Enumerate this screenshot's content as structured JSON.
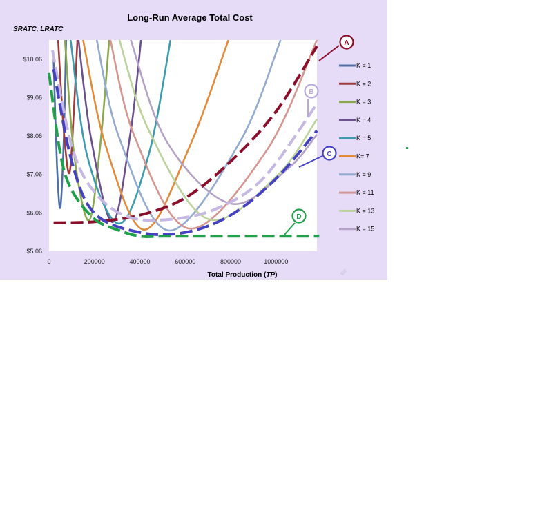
{
  "chart_data": {
    "type": "line",
    "title": "Long-Run Average Total Cost",
    "ylabel": "SRATC, LRATC",
    "xlabel_main": "Total Production (",
    "xlabel_italic": "TP",
    "xlabel_close": ")",
    "xlim": [
      0,
      1180000
    ],
    "ylim": [
      5.06,
      10.56
    ],
    "x_ticks": [
      0,
      200000,
      400000,
      600000,
      800000,
      1000000
    ],
    "x_tick_labels": [
      "0",
      "200000",
      "400000",
      "600000",
      "800000",
      "1000000"
    ],
    "y_ticks": [
      5.06,
      6.06,
      7.06,
      8.06,
      9.06,
      10.06
    ],
    "y_tick_labels": [
      "$5.06",
      "$6.06",
      "$7.06",
      "$8.06",
      "$9.06",
      "$10.06"
    ],
    "series": [
      {
        "name": "K = 1",
        "color": "#4f6fa6",
        "x": [
          20000,
          35000,
          50000,
          65000,
          75000
        ],
        "y": [
          10.06,
          7.3,
          6.2,
          8.0,
          10.56
        ]
      },
      {
        "name": "K = 2",
        "color": "#a13a3a",
        "x": [
          40000,
          65000,
          90000,
          110000,
          125000
        ],
        "y": [
          10.56,
          8.2,
          7.1,
          8.8,
          10.56
        ]
      },
      {
        "name": "K = 3",
        "color": "#8aa84e",
        "x": [
          70000,
          110000,
          175000,
          225000,
          265000
        ],
        "y": [
          10.56,
          7.6,
          5.86,
          7.8,
          10.56
        ]
      },
      {
        "name": "K = 4",
        "color": "#6b4f8e",
        "x": [
          130000,
          185000,
          280000,
          360000,
          405000
        ],
        "y": [
          10.56,
          8.0,
          5.82,
          8.2,
          10.56
        ]
      },
      {
        "name": "K = 5",
        "color": "#3e9bad",
        "x": [
          95000,
          170000,
          310000,
          440000,
          535000
        ],
        "y": [
          10.56,
          7.5,
          5.78,
          7.6,
          10.56
        ]
      },
      {
        "name": "K= 7",
        "color": "#e28a3a",
        "x": [
          150000,
          250000,
          420000,
          620000,
          790000
        ],
        "y": [
          10.56,
          7.8,
          5.62,
          7.8,
          10.56
        ]
      },
      {
        "name": "K = 9",
        "color": "#93aad1",
        "x": [
          210000,
          310000,
          530000,
          840000,
          1020000
        ],
        "y": [
          10.56,
          8.0,
          5.6,
          7.9,
          10.56
        ]
      },
      {
        "name": "K = 11",
        "color": "#d6958f",
        "x": [
          270000,
          380000,
          620000,
          960000,
          1180000
        ],
        "y": [
          10.56,
          8.0,
          5.65,
          7.7,
          10.56
        ]
      },
      {
        "name": "K = 13",
        "color": "#bcd39c",
        "x": [
          310000,
          440000,
          700000,
          1000000,
          1180000
        ],
        "y": [
          10.56,
          8.2,
          5.9,
          7.0,
          8.5
        ]
      },
      {
        "name": "K = 15",
        "color": "#b4a1c6",
        "x": [
          360000,
          520000,
          800000,
          1050000,
          1180000
        ],
        "y": [
          10.56,
          7.9,
          6.3,
          7.2,
          8.1
        ]
      },
      {
        "name": "A",
        "color": "#8b0f2b",
        "dashed": true,
        "x": [
          20000,
          200000,
          400000,
          600000,
          800000,
          1000000,
          1180000
        ],
        "y": [
          5.8,
          5.83,
          6.0,
          6.45,
          7.4,
          8.7,
          10.4
        ]
      },
      {
        "name": "B",
        "color": "#c5b8e3",
        "dashed": true,
        "x": [
          15000,
          100000,
          200000,
          350000,
          550000,
          750000,
          950000,
          1180000
        ],
        "y": [
          10.3,
          7.8,
          6.6,
          5.95,
          5.9,
          6.2,
          7.0,
          8.9
        ]
      },
      {
        "name": "C",
        "color": "#4542c2",
        "dashed": true,
        "x": [
          20000,
          100000,
          200000,
          400000,
          600000,
          800000,
          1000000,
          1180000
        ],
        "y": [
          9.8,
          7.4,
          6.05,
          5.55,
          5.55,
          6.0,
          6.95,
          8.2
        ]
      },
      {
        "name": "D",
        "color": "#1fa24b",
        "dashed": true,
        "x": [
          0,
          50000,
          100000,
          200000,
          300000,
          400000,
          500000,
          700000,
          900000,
          1100000,
          1190000
        ],
        "y": [
          9.7,
          7.6,
          6.65,
          5.9,
          5.62,
          5.45,
          5.45,
          5.45,
          5.45,
          5.45,
          5.45
        ]
      }
    ],
    "legend_position": "right",
    "annotations": [
      {
        "label": "A",
        "color": "#8b0f2b"
      },
      {
        "label": "B",
        "color": "#b9aadb"
      },
      {
        "label": "C",
        "color": "#4542c2"
      },
      {
        "label": "D",
        "color": "#1fa24b"
      }
    ]
  },
  "colors": {
    "chart_background": "#e6dcf8",
    "plot_background": "#ffffff",
    "stray_dot": "#1fa24b"
  }
}
